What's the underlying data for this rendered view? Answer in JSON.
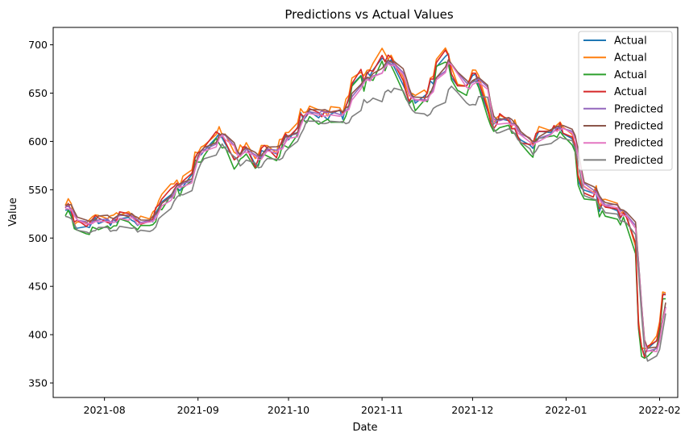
{
  "chart_data": {
    "type": "line",
    "title": "Predictions vs Actual Values",
    "xlabel": "Date",
    "ylabel": "Value",
    "x_ticks": [
      "2021-08",
      "2021-09",
      "2021-10",
      "2021-11",
      "2021-12",
      "2022-01",
      "2022-02"
    ],
    "y_ticks": [
      350,
      400,
      450,
      500,
      550,
      600,
      650,
      700
    ],
    "ylim": [
      335,
      718
    ],
    "legend_position": "top-right",
    "x": [
      "2021-07-19",
      "2021-07-20",
      "2021-07-21",
      "2021-07-22",
      "2021-07-23",
      "2021-07-26",
      "2021-07-27",
      "2021-07-28",
      "2021-07-29",
      "2021-07-30",
      "2021-08-02",
      "2021-08-03",
      "2021-08-04",
      "2021-08-05",
      "2021-08-06",
      "2021-08-09",
      "2021-08-10",
      "2021-08-11",
      "2021-08-12",
      "2021-08-13",
      "2021-08-16",
      "2021-08-17",
      "2021-08-18",
      "2021-08-19",
      "2021-08-20",
      "2021-08-23",
      "2021-08-24",
      "2021-08-25",
      "2021-08-26",
      "2021-08-27",
      "2021-08-30",
      "2021-08-31",
      "2021-09-01",
      "2021-09-02",
      "2021-09-03",
      "2021-09-07",
      "2021-09-08",
      "2021-09-09",
      "2021-09-10",
      "2021-09-13",
      "2021-09-14",
      "2021-09-15",
      "2021-09-16",
      "2021-09-17",
      "2021-09-20",
      "2021-09-21",
      "2021-09-22",
      "2021-09-23",
      "2021-09-24",
      "2021-09-27",
      "2021-09-28",
      "2021-09-29",
      "2021-09-30",
      "2021-10-01",
      "2021-10-04",
      "2021-10-05",
      "2021-10-06",
      "2021-10-07",
      "2021-10-08",
      "2021-10-11",
      "2021-10-12",
      "2021-10-13",
      "2021-10-14",
      "2021-10-15",
      "2021-10-18",
      "2021-10-19",
      "2021-10-20",
      "2021-10-21",
      "2021-10-22",
      "2021-10-25",
      "2021-10-26",
      "2021-10-27",
      "2021-10-28",
      "2021-10-29",
      "2021-11-01",
      "2021-11-02",
      "2021-11-03",
      "2021-11-04",
      "2021-11-05",
      "2021-11-08",
      "2021-11-09",
      "2021-11-10",
      "2021-11-11",
      "2021-11-12",
      "2021-11-15",
      "2021-11-16",
      "2021-11-17",
      "2021-11-18",
      "2021-11-19",
      "2021-11-22",
      "2021-11-23",
      "2021-11-24",
      "2021-11-26",
      "2021-11-29",
      "2021-11-30",
      "2021-12-01",
      "2021-12-02",
      "2021-12-03",
      "2021-12-06",
      "2021-12-07",
      "2021-12-08",
      "2021-12-09",
      "2021-12-10",
      "2021-12-13",
      "2021-12-14",
      "2021-12-15",
      "2021-12-16",
      "2021-12-17",
      "2021-12-20",
      "2021-12-21",
      "2021-12-22",
      "2021-12-23",
      "2021-12-27",
      "2021-12-28",
      "2021-12-29",
      "2021-12-30",
      "2021-12-31",
      "2022-01-03",
      "2022-01-04",
      "2022-01-05",
      "2022-01-06",
      "2022-01-07",
      "2022-01-10",
      "2022-01-11",
      "2022-01-12",
      "2022-01-13",
      "2022-01-14",
      "2022-01-18",
      "2022-01-19",
      "2022-01-20",
      "2022-01-21",
      "2022-01-24",
      "2022-01-25",
      "2022-01-26",
      "2022-01-27",
      "2022-01-28",
      "2022-01-31",
      "2022-02-01",
      "2022-02-02",
      "2022-02-03"
    ],
    "actual_base": [
      530,
      532,
      527,
      512,
      513,
      514,
      513,
      517,
      519,
      517,
      517,
      515,
      520,
      518,
      522,
      520,
      518,
      515,
      514,
      515,
      518,
      519,
      527,
      533,
      538,
      547,
      550,
      555,
      552,
      556,
      567,
      585,
      587,
      588,
      590,
      606,
      607,
      601,
      600,
      580,
      584,
      588,
      590,
      592,
      575,
      578,
      590,
      590,
      593,
      585,
      593,
      600,
      605,
      603,
      612,
      630,
      625,
      628,
      630,
      627,
      626,
      628,
      625,
      628,
      630,
      625,
      635,
      646,
      660,
      670,
      662,
      670,
      668,
      672,
      688,
      682,
      684,
      686,
      676,
      660,
      650,
      642,
      648,
      640,
      645,
      647,
      660,
      662,
      680,
      690,
      688,
      668,
      658,
      656,
      662,
      666,
      672,
      660,
      630,
      620,
      615,
      618,
      624,
      620,
      611,
      615,
      606,
      600,
      595,
      592,
      605,
      608,
      610,
      612,
      612,
      614,
      610,
      605,
      592,
      560,
      552,
      548,
      544,
      546,
      530,
      535,
      532,
      528,
      522,
      525,
      521,
      490,
      410,
      385,
      378,
      383,
      392,
      405,
      440,
      440,
      418
    ],
    "series": [
      {
        "name": "Actual",
        "color": "#1f77b4"
      },
      {
        "name": "Actual",
        "color": "#ff7f0e"
      },
      {
        "name": "Actual",
        "color": "#2ca02c"
      },
      {
        "name": "Actual",
        "color": "#d62728"
      },
      {
        "name": "Predicted",
        "color": "#9467bd"
      },
      {
        "name": "Predicted",
        "color": "#8c564b"
      },
      {
        "name": "Predicted",
        "color": "#e377c2"
      },
      {
        "name": "Predicted",
        "color": "#7f7f7f"
      }
    ]
  }
}
